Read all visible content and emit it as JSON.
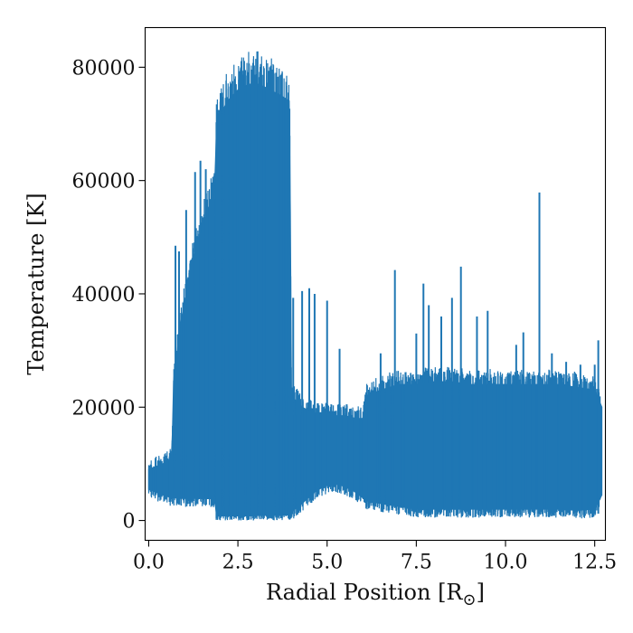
{
  "chart_data": {
    "type": "line",
    "title": "",
    "xlabel": "Radial Position [R",
    "xlabel_sub": "⊙",
    "xlabel_close": "]",
    "ylabel": "Temperature [K]",
    "xlim": [
      -0.1,
      12.8
    ],
    "ylim": [
      -3500,
      87000
    ],
    "xticks": [
      0.0,
      2.5,
      5.0,
      7.5,
      10.0,
      12.5
    ],
    "xtick_labels": [
      "0.0",
      "2.5",
      "5.0",
      "7.5",
      "10.0",
      "12.5"
    ],
    "yticks": [
      0,
      20000,
      40000,
      60000,
      80000
    ],
    "ytick_labels": [
      "0",
      "20000",
      "40000",
      "60000",
      "80000"
    ],
    "grid": false,
    "legend": "none",
    "series": [
      {
        "color": "#1f77b4",
        "envelope": {
          "x": [
            0.0,
            0.4,
            0.65,
            0.7,
            0.9,
            1.2,
            1.5,
            1.85,
            1.9,
            2.2,
            2.5,
            2.8,
            3.1,
            3.4,
            3.7,
            3.95,
            4.0,
            4.3,
            4.6,
            4.9,
            5.2,
            5.5,
            5.8,
            6.0,
            6.1,
            6.5,
            7.0,
            7.5,
            8.0,
            8.5,
            9.0,
            9.5,
            10.0,
            10.5,
            11.0,
            11.5,
            12.0,
            12.5,
            12.7
          ],
          "low": [
            5500,
            4500,
            4000,
            4000,
            3900,
            3900,
            3900,
            3800,
            800,
            800,
            800,
            800,
            900,
            900,
            900,
            1000,
            1500,
            3000,
            4800,
            6000,
            6500,
            6000,
            5000,
            4000,
            3500,
            3000,
            2500,
            2000,
            2000,
            2000,
            2000,
            2000,
            2000,
            2000,
            2000,
            2000,
            1800,
            2000,
            4500
          ],
          "high": [
            9000,
            10000,
            11000,
            25000,
            35000,
            45000,
            52000,
            58000,
            70000,
            74000,
            76000,
            77000,
            77000,
            76000,
            75000,
            74000,
            22000,
            20000,
            19000,
            19000,
            18500,
            18500,
            18000,
            18000,
            22000,
            23000,
            24000,
            24000,
            24500,
            24500,
            24000,
            24000,
            24000,
            24000,
            24000,
            24000,
            23500,
            23000,
            20000
          ]
        },
        "spikes": [
          [
            0.75,
            48500
          ],
          [
            0.85,
            47500
          ],
          [
            1.05,
            54800
          ],
          [
            1.3,
            61500
          ],
          [
            1.45,
            63500
          ],
          [
            1.6,
            62000
          ],
          [
            2.05,
            75500
          ],
          [
            2.3,
            77000
          ],
          [
            2.7,
            79500
          ],
          [
            2.95,
            80300
          ],
          [
            3.05,
            82800
          ],
          [
            3.4,
            80000
          ],
          [
            3.7,
            78500
          ],
          [
            4.05,
            39300
          ],
          [
            4.3,
            40500
          ],
          [
            4.5,
            41000
          ],
          [
            4.65,
            40000
          ],
          [
            5.0,
            38800
          ],
          [
            5.35,
            30300
          ],
          [
            5.55,
            20500
          ],
          [
            6.5,
            29500
          ],
          [
            6.9,
            44200
          ],
          [
            7.5,
            33000
          ],
          [
            7.7,
            41800
          ],
          [
            7.85,
            38000
          ],
          [
            8.2,
            36000
          ],
          [
            8.5,
            39300
          ],
          [
            8.75,
            44800
          ],
          [
            9.2,
            36000
          ],
          [
            9.5,
            37000
          ],
          [
            10.3,
            31000
          ],
          [
            10.5,
            33200
          ],
          [
            10.95,
            57900
          ],
          [
            11.3,
            29500
          ],
          [
            11.7,
            28000
          ],
          [
            12.1,
            27500
          ],
          [
            12.5,
            27500
          ],
          [
            12.6,
            31800
          ]
        ],
        "dips": [
          [
            6.55,
            1500
          ],
          [
            7.2,
            1500
          ],
          [
            7.8,
            1200
          ],
          [
            8.7,
            2500
          ],
          [
            9.5,
            1500
          ],
          [
            10.4,
            2000
          ],
          [
            11.6,
            2200
          ],
          [
            12.2,
            600
          ],
          [
            12.6,
            1200
          ]
        ]
      }
    ]
  }
}
